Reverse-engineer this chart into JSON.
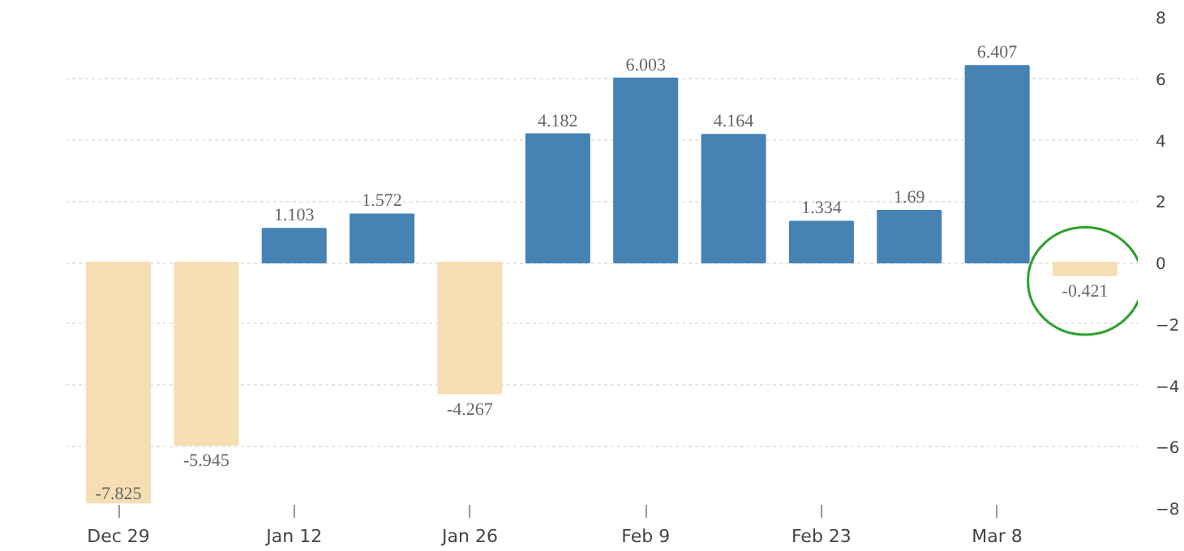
{
  "chart_data": {
    "type": "bar",
    "categories": [
      "Dec 29",
      null,
      "Jan 12",
      null,
      "Jan 26",
      null,
      "Feb 9",
      null,
      "Feb 23",
      null,
      "Mar 8",
      null
    ],
    "values": [
      -7.825,
      -5.945,
      1.103,
      1.572,
      -4.267,
      4.182,
      6.003,
      4.164,
      1.334,
      1.69,
      6.407,
      -0.421
    ],
    "colors": [
      "#f5deb3",
      "#f5deb3",
      "#4682b4",
      "#4682b4",
      "#f5deb3",
      "#4682b4",
      "#4682b4",
      "#4682b4",
      "#4682b4",
      "#4682b4",
      "#4682b4",
      "#f5deb3"
    ],
    "data_labels": true,
    "ylim": [
      -8,
      8
    ],
    "yticks": [
      -8,
      -6,
      -4,
      -2,
      0,
      2,
      4,
      6,
      8
    ],
    "grid": "y"
  }
}
